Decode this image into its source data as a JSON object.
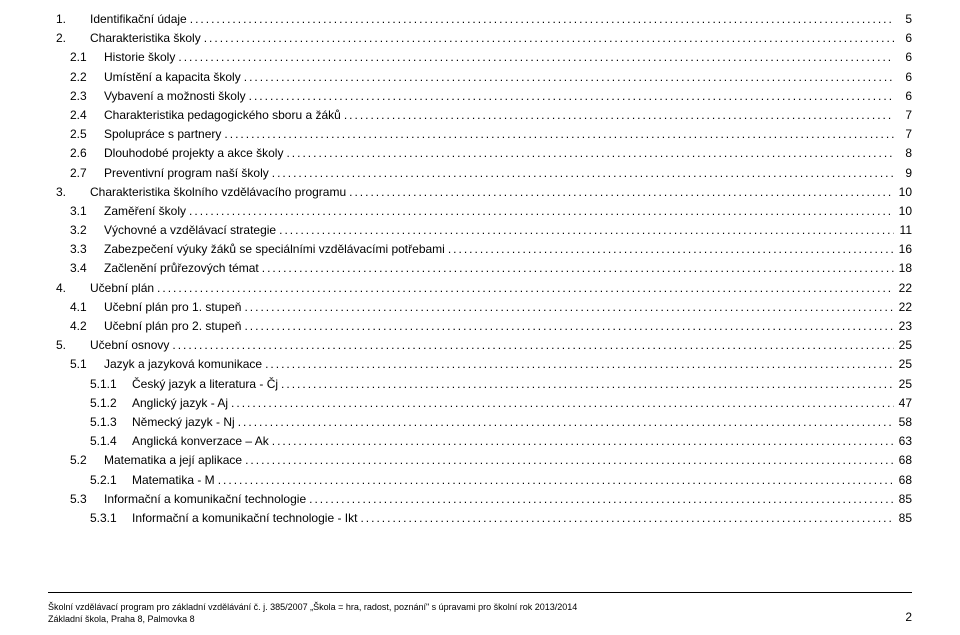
{
  "toc": [
    {
      "level": 1,
      "num": "1.",
      "title": "Identifikační údaje",
      "page": "5"
    },
    {
      "level": 1,
      "num": "2.",
      "title": "Charakteristika školy",
      "page": "6"
    },
    {
      "level": 2,
      "num": "2.1",
      "title": "Historie školy",
      "page": "6"
    },
    {
      "level": 2,
      "num": "2.2",
      "title": "Umístění a kapacita školy",
      "page": "6"
    },
    {
      "level": 2,
      "num": "2.3",
      "title": "Vybavení a možnosti školy",
      "page": "6"
    },
    {
      "level": 2,
      "num": "2.4",
      "title": "Charakteristika pedagogického sboru a žáků",
      "page": "7"
    },
    {
      "level": 2,
      "num": "2.5",
      "title": "Spolupráce s partnery",
      "page": "7"
    },
    {
      "level": 2,
      "num": "2.6",
      "title": "Dlouhodobé projekty a akce školy",
      "page": "8"
    },
    {
      "level": 2,
      "num": "2.7",
      "title": "Preventivní program naší školy",
      "page": "9"
    },
    {
      "level": 1,
      "num": "3.",
      "title": "Charakteristika školního vzdělávacího programu",
      "page": "10"
    },
    {
      "level": 2,
      "num": "3.1",
      "title": "Zaměření školy",
      "page": "10"
    },
    {
      "level": 2,
      "num": "3.2",
      "title": "Výchovné a vzdělávací strategie",
      "page": "11"
    },
    {
      "level": 2,
      "num": "3.3",
      "title": "Zabezpečení výuky žáků se speciálními vzdělávacími potřebami",
      "page": "16"
    },
    {
      "level": 2,
      "num": "3.4",
      "title": "Začlenění průřezových témat",
      "page": "18"
    },
    {
      "level": 1,
      "num": "4.",
      "title": "Učební plán",
      "page": "22"
    },
    {
      "level": 2,
      "num": "4.1",
      "title": "Učební plán pro 1. stupeň",
      "page": "22"
    },
    {
      "level": 2,
      "num": "4.2",
      "title": "Učební plán pro 2. stupeň",
      "page": "23"
    },
    {
      "level": 1,
      "num": "5.",
      "title": "Učební osnovy",
      "page": "25"
    },
    {
      "level": 2,
      "num": "5.1",
      "title": "Jazyk a jazyková komunikace",
      "page": "25"
    },
    {
      "level": 3,
      "num": "5.1.1",
      "title": "Český jazyk a literatura - Čj",
      "page": "25"
    },
    {
      "level": 3,
      "num": "5.1.2",
      "title": "Anglický jazyk - Aj",
      "page": "47"
    },
    {
      "level": 3,
      "num": "5.1.3",
      "title": "Německý jazyk - Nj",
      "page": "58"
    },
    {
      "level": 3,
      "num": "5.1.4",
      "title": "Anglická konverzace – Ak",
      "page": "63"
    },
    {
      "level": 2,
      "num": "5.2",
      "title": "Matematika a její aplikace",
      "page": "68"
    },
    {
      "level": 3,
      "num": "5.2.1",
      "title": "Matematika - M",
      "page": "68"
    },
    {
      "level": 2,
      "num": "5.3",
      "title": "Informační a komunikační technologie",
      "page": "85"
    },
    {
      "level": 3,
      "num": "5.3.1",
      "title": "Informační a komunikační technologie - Ikt",
      "page": "85"
    }
  ],
  "footer": {
    "line1": "Školní vzdělávací program pro základní vzdělávání č. j. 385/2007 „Škola = hra, radost, poznání\" s úpravami pro školní rok 2013/2014",
    "line2": "Základní škola, Praha 8, Palmovka 8",
    "pageNumber": "2"
  }
}
